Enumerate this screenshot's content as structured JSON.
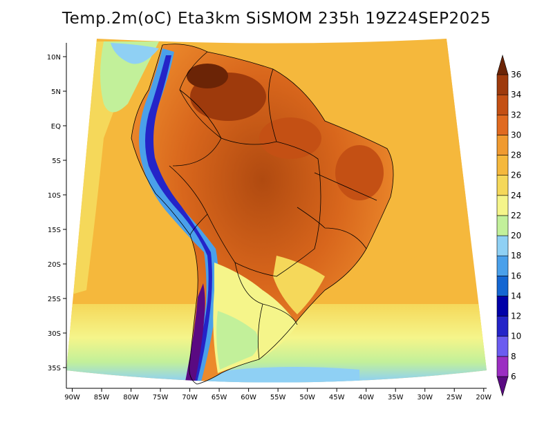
{
  "title": "Temp.2m(oC) Eta3km SiSMOM 235h 19Z24SEP2025",
  "chart_data": {
    "type": "heatmap",
    "title": "Temp.2m(oC) Eta3km SiSMOM 235h 19Z24SEP2025",
    "x_ticks": [
      "90W",
      "85W",
      "80W",
      "75W",
      "70W",
      "65W",
      "60W",
      "55W",
      "50W",
      "45W",
      "40W",
      "35W",
      "30W",
      "25W",
      "20W"
    ],
    "x_values": [
      -90,
      -85,
      -80,
      -75,
      -70,
      -65,
      -60,
      -55,
      -50,
      -45,
      -40,
      -35,
      -30,
      -25,
      -20
    ],
    "y_ticks": [
      "10N",
      "5N",
      "EQ",
      "5S",
      "10S",
      "15S",
      "20S",
      "25S",
      "30S",
      "35S"
    ],
    "y_values": [
      10,
      5,
      0,
      -5,
      -10,
      -15,
      -20,
      -25,
      -30,
      -35
    ],
    "xlim": [
      -91,
      -19.5
    ],
    "ylim": [
      -38,
      12
    ],
    "colorbar": {
      "labels": [
        "6",
        "8",
        "10",
        "12",
        "14",
        "16",
        "18",
        "20",
        "22",
        "24",
        "26",
        "28",
        "30",
        "32",
        "34",
        "36"
      ],
      "levels": [
        6,
        8,
        10,
        12,
        14,
        16,
        18,
        20,
        22,
        24,
        26,
        28,
        30,
        32,
        34,
        36
      ],
      "colors": [
        "#5a0a82",
        "#9b2ec2",
        "#6b5cf0",
        "#2424c8",
        "#0000a8",
        "#1466d2",
        "#4aa0ea",
        "#8fd0f4",
        "#c2f09a",
        "#f5f58a",
        "#f5d85a",
        "#f5b83c",
        "#f09a30",
        "#e06a20",
        "#c45014",
        "#9e3a0c",
        "#6b2406"
      ]
    }
  }
}
